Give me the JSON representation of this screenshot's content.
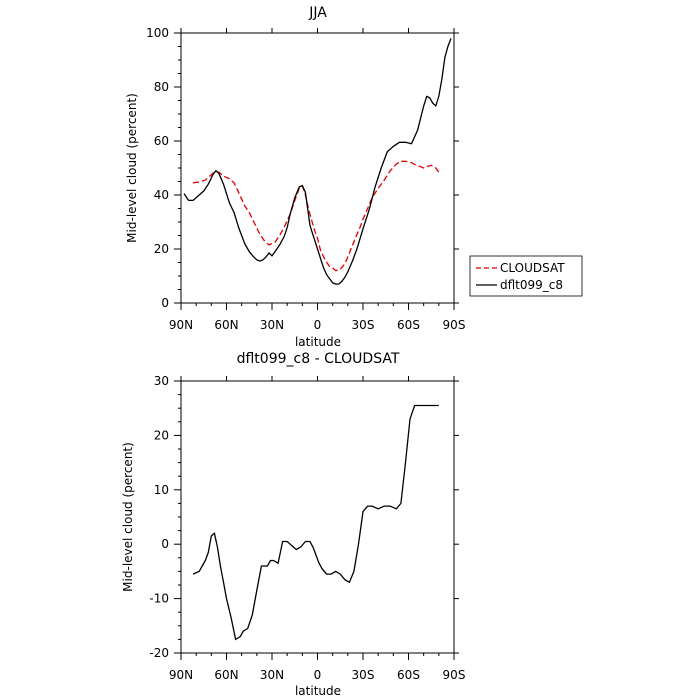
{
  "chart_data": [
    {
      "type": "line",
      "title": "JJA",
      "xlabel": "latitude",
      "ylabel": "Mid-level cloud (percent)",
      "xlim": [
        90,
        -90
      ],
      "ylim": [
        0,
        100
      ],
      "x_ticks": [
        90,
        60,
        30,
        0,
        -30,
        -60,
        -90
      ],
      "x_tick_labels": [
        "90N",
        "60N",
        "30N",
        "0",
        "30S",
        "60S",
        "90S"
      ],
      "y_ticks": [
        0,
        20,
        40,
        60,
        80,
        100
      ],
      "y_tick_labels": [
        "0",
        "20",
        "40",
        "60",
        "80",
        "100"
      ],
      "grid": false,
      "legend_position": "right",
      "series": [
        {
          "name": "CLOUDSAT",
          "color": "#e00000",
          "dash": "dashed",
          "x": [
            82,
            78,
            74,
            71,
            68,
            65,
            62,
            58,
            55,
            52,
            48,
            45,
            42,
            38,
            35,
            32,
            28,
            25,
            22,
            18,
            15,
            12,
            10,
            8,
            6,
            4,
            2,
            0,
            -2,
            -5,
            -8,
            -10,
            -12,
            -15,
            -18,
            -20,
            -22,
            -25,
            -28,
            -30,
            -33,
            -36,
            -40,
            -44,
            -48,
            -52,
            -55,
            -58,
            -62,
            -65,
            -68,
            -70,
            -72,
            -75,
            -78,
            -80
          ],
          "y": [
            44.5,
            44.8,
            45.5,
            47,
            48.5,
            48.5,
            47,
            46,
            44.5,
            41,
            36,
            33.5,
            30,
            25.5,
            23,
            21.5,
            22.5,
            25,
            28,
            33,
            38,
            42.5,
            43.5,
            40,
            35,
            31,
            27,
            24,
            19.5,
            16,
            13.5,
            13,
            12,
            12.5,
            14.5,
            17,
            20,
            24,
            28,
            31,
            35,
            39,
            42.5,
            45.5,
            49,
            51.5,
            52.5,
            52.5,
            52,
            51,
            50.5,
            50,
            50.5,
            51,
            50,
            48.5
          ]
        },
        {
          "name": "dflt099_c8",
          "color": "#000000",
          "dash": "solid",
          "x": [
            88,
            85,
            82,
            78,
            75,
            72,
            69,
            67,
            65,
            62,
            58,
            55,
            52,
            48,
            45,
            42,
            40,
            38,
            36,
            34,
            32,
            30,
            28,
            25,
            22,
            20,
            18,
            15,
            12,
            10,
            8,
            7,
            6,
            5,
            4,
            2,
            0,
            -2,
            -4,
            -6,
            -8,
            -10,
            -12,
            -14,
            -16,
            -18,
            -20,
            -23,
            -26,
            -30,
            -34,
            -38,
            -42,
            -46,
            -50,
            -54,
            -58,
            -62,
            -66,
            -70,
            -72,
            -74,
            -76,
            -78,
            -80,
            -82,
            -84,
            -86,
            -88
          ],
          "y": [
            40.5,
            38,
            38,
            40,
            41.5,
            44,
            47.5,
            49,
            48,
            44,
            37,
            33.5,
            28,
            22,
            19,
            17,
            16,
            15.5,
            16,
            17,
            18.5,
            17.5,
            19,
            21.5,
            24.5,
            28,
            33,
            39,
            43,
            43.5,
            41,
            37,
            33,
            29,
            27,
            23.5,
            20,
            16.5,
            13,
            10.5,
            9,
            7.5,
            7,
            7,
            8,
            9.5,
            11.5,
            15.5,
            20,
            27.5,
            34.5,
            43,
            50,
            56,
            58,
            59.5,
            59.5,
            59,
            64,
            73,
            76.5,
            76,
            74,
            73,
            76.5,
            83,
            91,
            95,
            98
          ]
        }
      ]
    },
    {
      "type": "line",
      "title": "dflt099_c8 - CLOUDSAT",
      "xlabel": "latitude",
      "ylabel": "Mid-level cloud (percent)",
      "xlim": [
        90,
        -90
      ],
      "ylim": [
        -20,
        30
      ],
      "x_ticks": [
        90,
        60,
        30,
        0,
        -30,
        -60,
        -90
      ],
      "x_tick_labels": [
        "90N",
        "60N",
        "30N",
        "0",
        "30S",
        "60S",
        "90S"
      ],
      "y_ticks": [
        -20,
        -10,
        0,
        10,
        20,
        30
      ],
      "y_tick_labels": [
        "-20",
        "-10",
        "0",
        "10",
        "20",
        "30"
      ],
      "grid": false,
      "series": [
        {
          "color": "#000000",
          "dash": "solid",
          "x": [
            82,
            78,
            76,
            74,
            72,
            70,
            68,
            66,
            64,
            62,
            60,
            57,
            54,
            51,
            49,
            46,
            43,
            40,
            37,
            35,
            33,
            31,
            29,
            26,
            23,
            20,
            18,
            16,
            14,
            11,
            8,
            5,
            3,
            1,
            -1,
            -3,
            -6,
            -9,
            -12,
            -15,
            -18,
            -21,
            -24,
            -27,
            -30,
            -33,
            -36,
            -40,
            -44,
            -48,
            -52,
            -55,
            -58,
            -61,
            -64,
            -67,
            -70,
            -72,
            -74,
            -76,
            -78,
            -80
          ],
          "y": [
            -5.5,
            -5,
            -4,
            -3,
            -1.5,
            1.5,
            2,
            -0.5,
            -4,
            -7,
            -10,
            -13.5,
            -17.5,
            -17,
            -16,
            -15.5,
            -13,
            -8.5,
            -4,
            -4,
            -4,
            -3,
            -3,
            -3.5,
            0.5,
            0.5,
            0,
            -0.5,
            -1,
            -0.5,
            0.5,
            0.5,
            -0.5,
            -2,
            -3.5,
            -4.5,
            -5.5,
            -5.5,
            -5,
            -5.5,
            -6.5,
            -7,
            -5,
            0,
            6,
            7,
            7,
            6.5,
            7,
            7,
            6.5,
            7.5,
            15,
            23,
            25.5,
            25.5,
            25.5,
            25.5,
            25.5,
            25.5,
            25.5,
            25.5
          ]
        }
      ]
    }
  ]
}
